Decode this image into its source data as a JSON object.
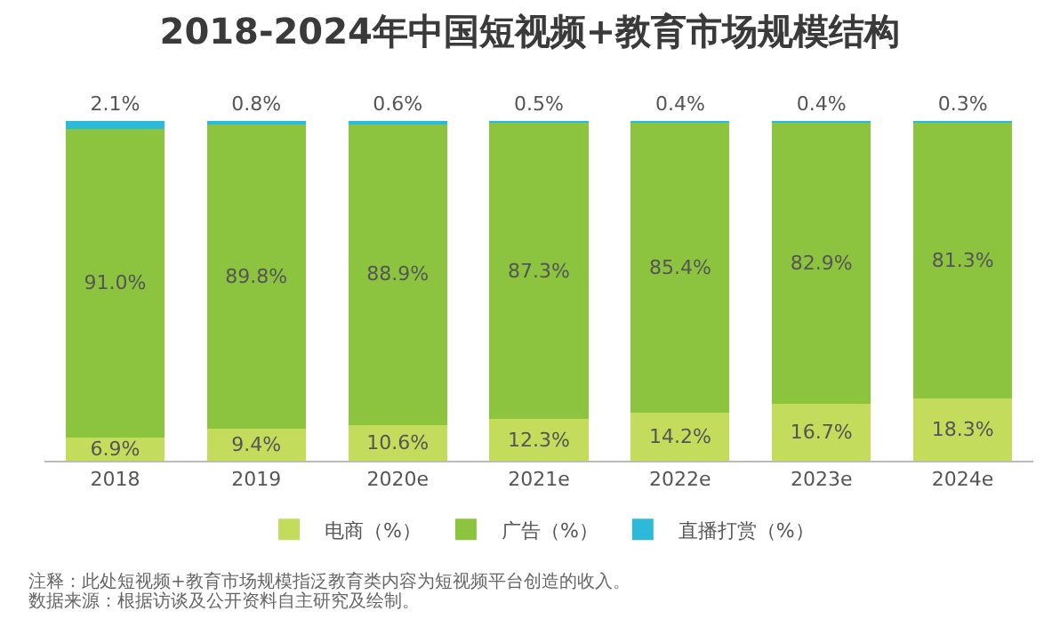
{
  "chart_data": {
    "type": "bar",
    "title": "2018-2024年中国短视频+教育市场规模结构",
    "categories": [
      "2018",
      "2019",
      "2020e",
      "2021e",
      "2022e",
      "2023e",
      "2024e"
    ],
    "stacked": true,
    "legend": "bottom",
    "series": [
      {
        "name": "电商（%）",
        "color": "#c3dc5c",
        "values": [
          6.9,
          9.4,
          10.6,
          12.3,
          14.2,
          16.7,
          18.3
        ],
        "value_labels": [
          "6.9%",
          "9.4%",
          "10.6%",
          "12.3%",
          "14.2%",
          "16.7%",
          "18.3%"
        ]
      },
      {
        "name": "广告（%）",
        "color": "#8cc43f",
        "values": [
          91.0,
          89.8,
          88.9,
          87.3,
          85.4,
          82.9,
          81.3
        ],
        "value_labels": [
          "91.0%",
          "89.8%",
          "88.9%",
          "87.3%",
          "85.4%",
          "82.9%",
          "81.3%"
        ]
      },
      {
        "name": "直播打赏（%）",
        "color": "#2cbad8",
        "values": [
          2.1,
          0.8,
          0.6,
          0.5,
          0.4,
          0.4,
          0.3
        ],
        "value_labels": [
          "2.1%",
          "0.8%",
          "0.6%",
          "0.5%",
          "0.4%",
          "0.4%",
          "0.3%"
        ]
      }
    ],
    "annotations": [
      "注释：此处短视频+教育市场规模指泛教育类内容为短视频平台创造的收入。",
      "数据来源：根据访谈及公开资料自主研究及绘制。"
    ]
  }
}
